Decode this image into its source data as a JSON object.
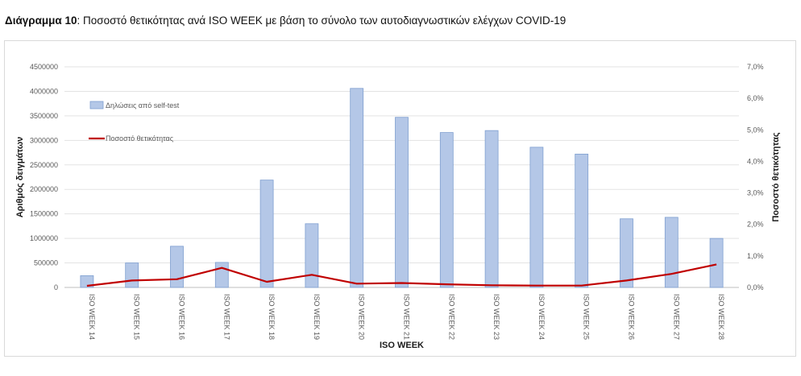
{
  "header": {
    "label": "Διάγραμμα 10",
    "text": ": Ποσοστό θετικότητας ανά ISO WEEK με βάση το σύνολο των αυτοδιαγνωστικών ελέγχων COVID-19"
  },
  "chart_data": {
    "type": "bar",
    "categories": [
      "ISO WEEK 14",
      "ISO WEEK 15",
      "ISO WEEK 16",
      "ISO WEEK 17",
      "ISO WEEK 18",
      "ISO WEEK 19",
      "ISO WEEK 20",
      "ISO WEEK 21",
      "ISO WEEK 22",
      "ISO WEEK 23",
      "ISO WEEK 24",
      "ISO WEEK 25",
      "ISO WEEK 26",
      "ISO WEEK 27",
      "ISO WEEK 28"
    ],
    "series": [
      {
        "name": "Δηλώσεις από self-test",
        "type": "bar",
        "axis": "left",
        "color": "#b4c7e7",
        "values": [
          240000,
          500000,
          840000,
          510000,
          2190000,
          1300000,
          4060000,
          3470000,
          3160000,
          3200000,
          2860000,
          2720000,
          1400000,
          1430000,
          1000000
        ]
      },
      {
        "name": "Ποσοστό θετικότητας",
        "type": "line",
        "axis": "right",
        "color": "#c00000",
        "values": [
          0.05,
          0.22,
          0.26,
          0.62,
          0.18,
          0.4,
          0.12,
          0.14,
          0.1,
          0.07,
          0.06,
          0.06,
          0.22,
          0.43,
          0.73
        ]
      }
    ],
    "xlabel": "ISO WEEK",
    "ylabel": "Αριθμός δειγμάτων",
    "y2label": "Ποσοστό θετικότητας",
    "ylim": [
      0,
      4500000
    ],
    "y2lim": [
      0,
      7.0
    ],
    "yticks": [
      "0",
      "500000",
      "1000000",
      "1500000",
      "2000000",
      "2500000",
      "3000000",
      "3500000",
      "4000000",
      "4500000"
    ],
    "y2ticks": [
      "0,0%",
      "1,0%",
      "2,0%",
      "3,0%",
      "4,0%",
      "5,0%",
      "6,0%",
      "7,0%"
    ],
    "grid": true,
    "legend": "top-left"
  }
}
